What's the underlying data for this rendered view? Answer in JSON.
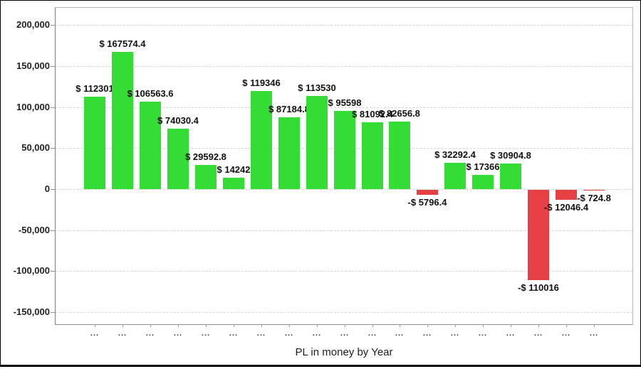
{
  "chart_data": {
    "type": "bar",
    "title": "PL in money by Year",
    "xlabel": "PL in money by Year",
    "ylabel": "",
    "categories": [
      "...",
      "...",
      "...",
      "...",
      "...",
      "...",
      "...",
      "...",
      "...",
      "...",
      "...",
      "...",
      "...",
      "...",
      "...",
      "...",
      "...",
      "...",
      "..."
    ],
    "values": [
      112301,
      167574.4,
      106563.6,
      74030.4,
      29592.8,
      14242,
      119346,
      87184.8,
      113530,
      95598,
      81092.4,
      82656.8,
      -5796.4,
      32292.4,
      17366,
      30904.8,
      -110016,
      -12046.4,
      -724.8
    ],
    "bar_labels": [
      "$ 112301",
      "$ 167574.4",
      "$ 106563.6",
      "$ 74030.4",
      "$ 29592.8",
      "$ 14242",
      "$ 119346",
      "$ 87184.8",
      "$ 113530",
      "$ 95598",
      "$ 81092.4",
      "$ 82656.8",
      "-$ 5796.4",
      "$ 32292.4",
      "$ 17366",
      "$ 30904.8",
      "-$ 110016",
      "-$ 12046.4",
      "-$ 724.8"
    ],
    "y_ticks": {
      "values": [
        200000,
        150000,
        100000,
        50000,
        0,
        -50000,
        -100000,
        -150000
      ],
      "labels": [
        "200,000",
        "150,000",
        "100,000",
        "50,000",
        "0",
        "-50,000",
        "-100,000",
        "-150,000"
      ]
    },
    "ylim": [
      -164600,
      221800
    ],
    "grid": "horizontal-dashed",
    "legend": null,
    "colors": {
      "positive": "#33dd33",
      "negative": "#e64045",
      "gridline": "#d4d4d4",
      "axis": "#9a9a9a",
      "label_text": "#111111"
    }
  }
}
